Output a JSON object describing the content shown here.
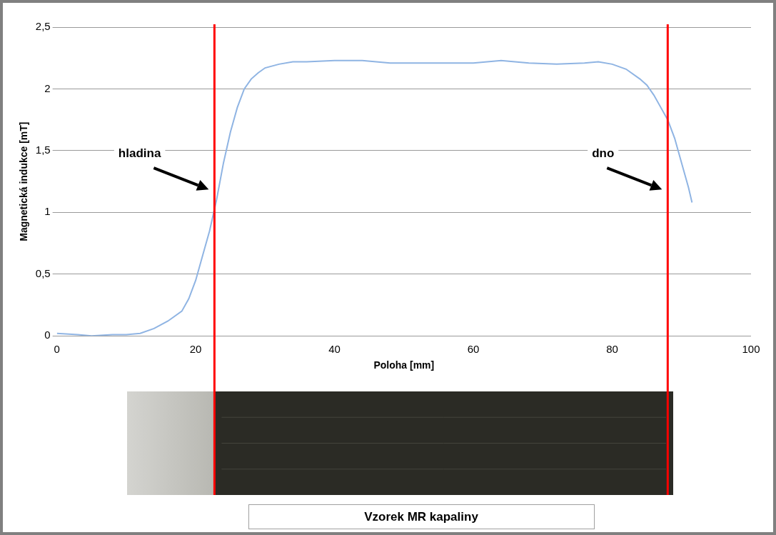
{
  "chart_data": {
    "type": "line",
    "x_label": "Poloha [mm]",
    "y_label": "Magnetická indukce [mT]",
    "x": [
      0,
      3,
      5,
      8,
      10,
      12,
      14,
      16,
      18,
      19,
      20,
      21,
      22,
      23,
      24,
      25,
      26,
      27,
      28,
      29,
      30,
      32,
      34,
      36,
      40,
      44,
      48,
      52,
      56,
      60,
      64,
      68,
      72,
      76,
      78,
      80,
      82,
      84,
      85,
      86,
      87,
      88,
      89,
      90,
      91,
      91.5
    ],
    "values": [
      0.02,
      0.01,
      0.0,
      0.01,
      0.01,
      0.02,
      0.06,
      0.12,
      0.2,
      0.3,
      0.45,
      0.65,
      0.85,
      1.1,
      1.4,
      1.65,
      1.85,
      2.0,
      2.08,
      2.13,
      2.17,
      2.2,
      2.22,
      2.22,
      2.23,
      2.23,
      2.21,
      2.21,
      2.21,
      2.21,
      2.23,
      2.21,
      2.2,
      2.21,
      2.22,
      2.2,
      2.16,
      2.08,
      2.03,
      1.95,
      1.85,
      1.75,
      1.6,
      1.4,
      1.2,
      1.08
    ],
    "color": "#8fb4e3",
    "xlim": [
      0,
      100
    ],
    "xticks": [
      0,
      20,
      40,
      60,
      80,
      100
    ],
    "ylim": [
      0,
      2.5
    ],
    "yticks": [
      0,
      {
        "value": 0.5,
        "label": "0,5"
      },
      1,
      {
        "value": 1.5,
        "label": "1,5"
      },
      2,
      {
        "value": 2.5,
        "label": "2,5"
      }
    ],
    "grid": true,
    "vertical_lines": [
      {
        "x": 22.7,
        "label": "hladina",
        "color": "#ff0000"
      },
      {
        "x": 88,
        "label": "dno",
        "color": "#ff0000"
      }
    ],
    "caption": "Vzorek MR kapaliny"
  }
}
